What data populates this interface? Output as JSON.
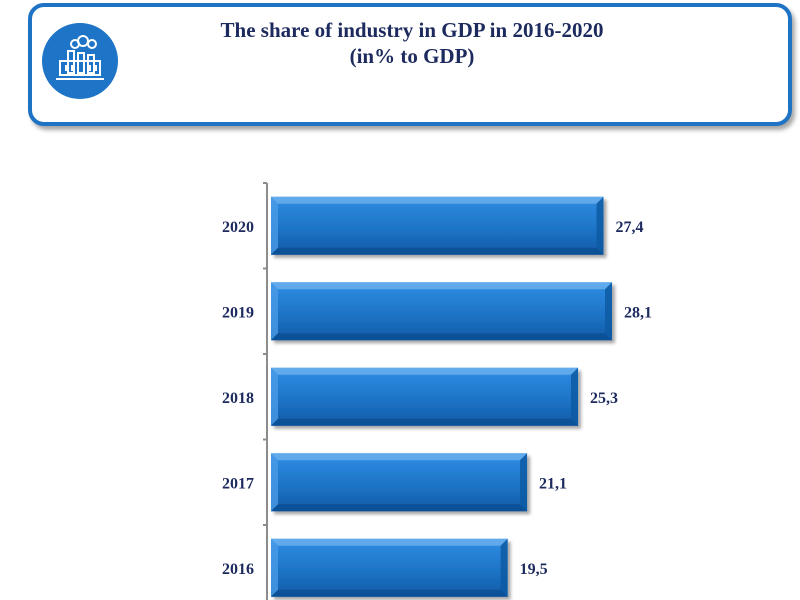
{
  "header": {
    "title_line1": "The share of industry in GDP in 2016-2020",
    "title_line2": "(in% to GDP)",
    "logo_icon": "factory-icon"
  },
  "colors": {
    "bar": "#1e74c6",
    "bar_light": "#5aa8ec",
    "bar_dark": "#0b4f93",
    "text": "#1c2a5e",
    "frame": "#1f73c4"
  },
  "chart_data": {
    "type": "bar",
    "orientation": "horizontal",
    "title": "The share of industry in GDP in 2016-2020 (in% to GDP)",
    "categories": [
      "2020",
      "2019",
      "2018",
      "2017",
      "2016"
    ],
    "values": [
      27.4,
      28.1,
      25.3,
      21.1,
      19.5
    ],
    "value_labels": [
      "27,4",
      "28,1",
      "25,3",
      "21,1",
      "19,5"
    ],
    "xlim": [
      0,
      28.1
    ],
    "xlabel": "",
    "ylabel": "",
    "grid": false,
    "legend": "none"
  }
}
